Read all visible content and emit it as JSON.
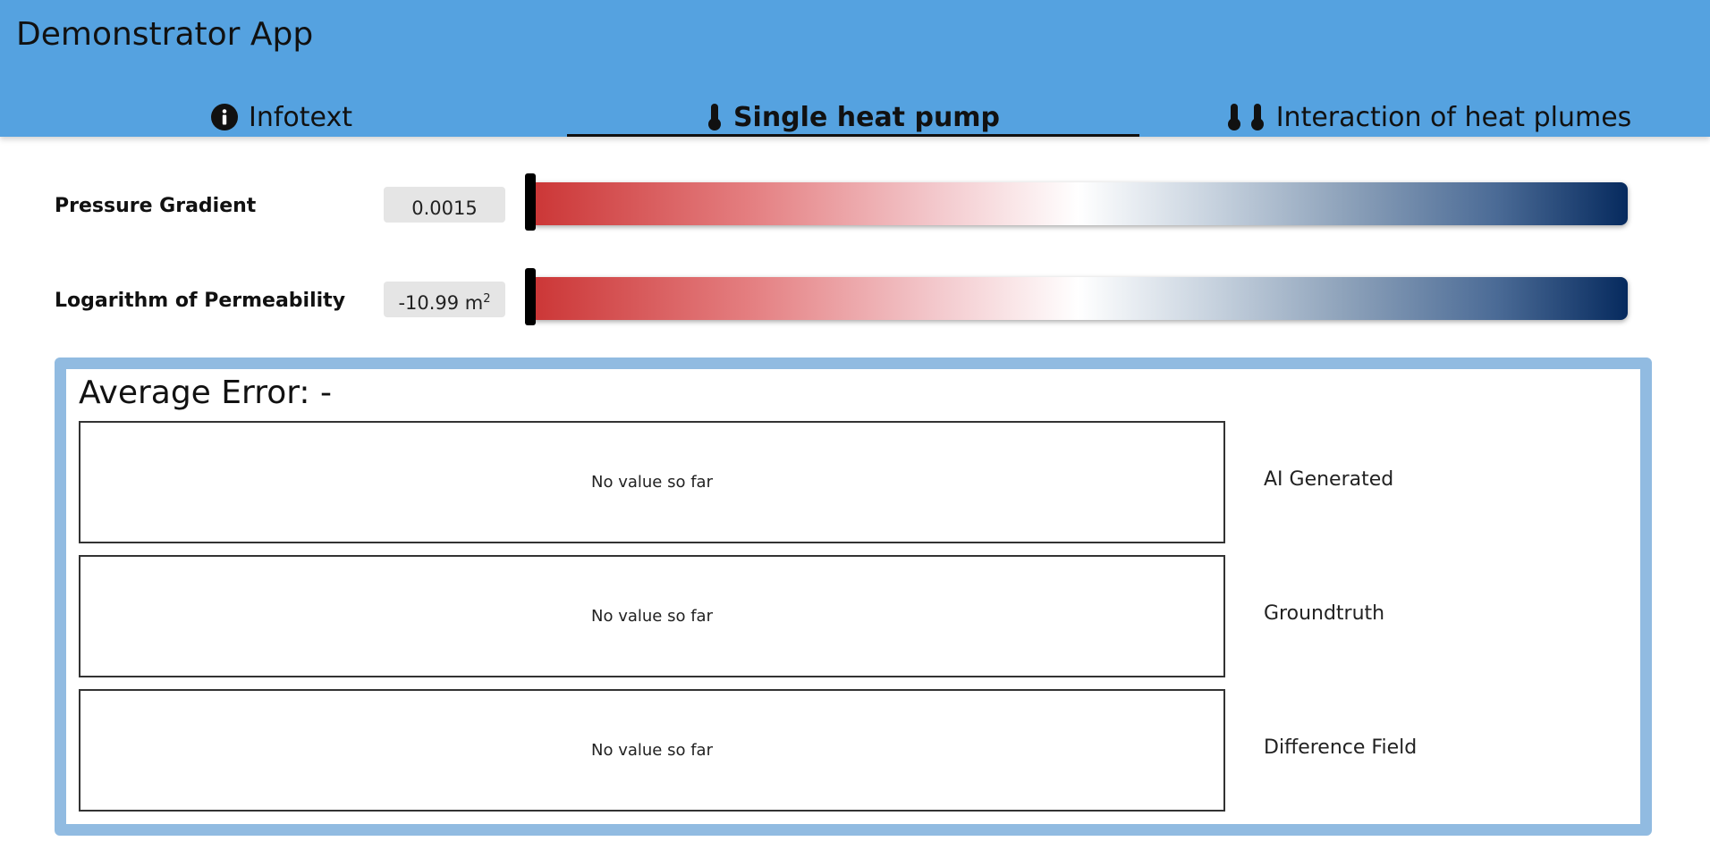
{
  "header": {
    "title": "Demonstrator App",
    "background_color": "#55a2e0",
    "tabs": [
      {
        "label": "Infotext",
        "icons": [
          "info-icon"
        ],
        "active": false
      },
      {
        "label": "Single heat pump",
        "icons": [
          "thermometer-icon"
        ],
        "active": true
      },
      {
        "label": "Interaction of heat plumes",
        "icons": [
          "thermometer-icon",
          "thermometer-icon"
        ],
        "active": false
      }
    ]
  },
  "sliders": [
    {
      "label": "Pressure Gradient",
      "value": "0.0015",
      "unit": ""
    },
    {
      "label": "Logarithm of Permeability",
      "value": "-10.99 m",
      "unit": "2"
    }
  ],
  "slider_colormap": [
    "#cb3535",
    "#ffffff",
    "#062a5e"
  ],
  "results": {
    "average_error": "Average Error: -",
    "panel_border_color": "#91bbe1",
    "rows": [
      {
        "placeholder": "No value so far",
        "label": "AI Generated"
      },
      {
        "placeholder": "No value so far",
        "label": "Groundtruth"
      },
      {
        "placeholder": "No value so far",
        "label": "Difference Field"
      }
    ]
  }
}
